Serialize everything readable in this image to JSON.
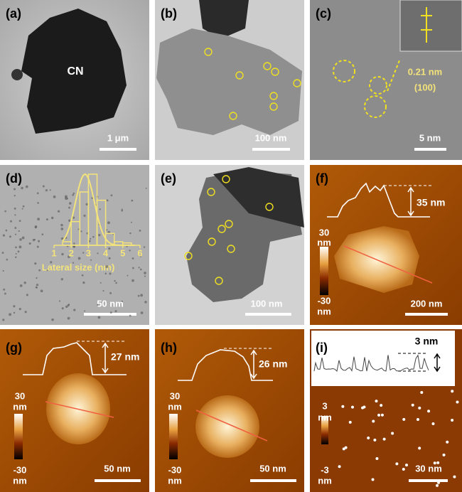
{
  "panels": [
    {
      "label": "(a)",
      "sample_label": "CN",
      "scale_bar": "1 μm"
    },
    {
      "label": "(b)",
      "scale_bar": "100 nm"
    },
    {
      "label": "(c)",
      "annotations": [
        "0.21 nm",
        "(100)"
      ],
      "scale_bar": "5 nm"
    },
    {
      "label": "(d)",
      "scale_bar": "50 nm",
      "histogram": {
        "type": "histogram",
        "bins": [
          1.5,
          2,
          2.5,
          3,
          3.5,
          4,
          4.5,
          5,
          5.5
        ],
        "counts": [
          3,
          20,
          45,
          60,
          38,
          10,
          3,
          2
        ],
        "xlim": [
          1,
          6
        ],
        "xticks": [
          1,
          2,
          3,
          4,
          5,
          6
        ],
        "xlabel": "Lateral size (nm)",
        "color": "#f3e37a"
      }
    },
    {
      "label": "(e)",
      "scale_bar": "100 nm"
    },
    {
      "label": "(f)",
      "height": "35 nm",
      "colorbar": {
        "max": "30",
        "max_unit": "nm",
        "min": "-30",
        "min_unit": "nm"
      },
      "scale_bar": "200 nm"
    },
    {
      "label": "(g)",
      "height": "27 nm",
      "colorbar": {
        "max": "30",
        "max_unit": "nm",
        "min": "-30",
        "min_unit": "nm"
      },
      "scale_bar": "50 nm"
    },
    {
      "label": "(h)",
      "height": "26 nm",
      "colorbar": {
        "max": "30",
        "max_unit": "nm",
        "min": "-30",
        "min_unit": "nm"
      },
      "scale_bar": "50 nm"
    },
    {
      "label": "(i)",
      "height": "3 nm",
      "colorbar": {
        "max": "3",
        "max_unit": "nm",
        "min": "-3",
        "min_unit": "nm"
      },
      "scale_bar": "30 nm"
    }
  ]
}
